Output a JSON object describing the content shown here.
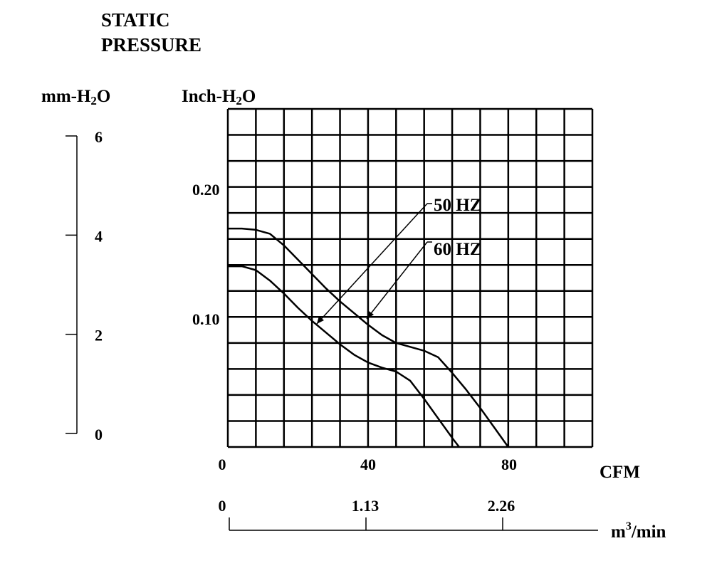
{
  "title_lines": [
    "STATIC",
    "PRESSURE"
  ],
  "left_axis": {
    "unit_prefix": "mm-H",
    "unit_sub": "2",
    "unit_suffix": "O",
    "ticks": [
      0,
      2,
      4,
      6
    ]
  },
  "inch_axis": {
    "unit_prefix": "Inch-H",
    "unit_sub": "2",
    "unit_suffix": "O",
    "tick_labels": [
      "0.20",
      "0.10"
    ]
  },
  "x_axis": {
    "unit": "CFM",
    "tick_labels": [
      "0",
      "40",
      "80"
    ]
  },
  "m3_axis": {
    "unit_base": "m",
    "unit_sup": "3",
    "unit_suffix": "/min",
    "tick_labels": [
      "0",
      "1.13",
      "2.26"
    ]
  },
  "chart_data": {
    "type": "line",
    "xlabel": "CFM",
    "ylabel": "Inch-H2O",
    "xlim": [
      0,
      104
    ],
    "ylim": [
      0,
      0.26
    ],
    "grid": true,
    "series": [
      {
        "name": "50 HZ",
        "x": [
          0,
          4,
          8,
          12,
          16,
          20,
          24,
          28,
          32,
          36,
          40,
          44,
          48,
          52,
          56,
          60,
          64,
          66
        ],
        "y": [
          0.139,
          0.139,
          0.136,
          0.128,
          0.118,
          0.107,
          0.097,
          0.088,
          0.079,
          0.071,
          0.065,
          0.061,
          0.058,
          0.051,
          0.037,
          0.022,
          0.007,
          0.0
        ]
      },
      {
        "name": "60 HZ",
        "x": [
          0,
          4,
          8,
          12,
          16,
          20,
          24,
          28,
          32,
          36,
          40,
          44,
          48,
          52,
          56,
          60,
          64,
          68,
          72,
          76,
          80
        ],
        "y": [
          0.168,
          0.168,
          0.167,
          0.164,
          0.155,
          0.144,
          0.133,
          0.122,
          0.112,
          0.103,
          0.094,
          0.086,
          0.08,
          0.077,
          0.074,
          0.069,
          0.057,
          0.044,
          0.03,
          0.015,
          0.0
        ]
      }
    ],
    "annotations": [
      {
        "text": "50 HZ",
        "points_to_series": "50 HZ"
      },
      {
        "text": "60 HZ",
        "points_to_series": "60 HZ"
      }
    ]
  }
}
